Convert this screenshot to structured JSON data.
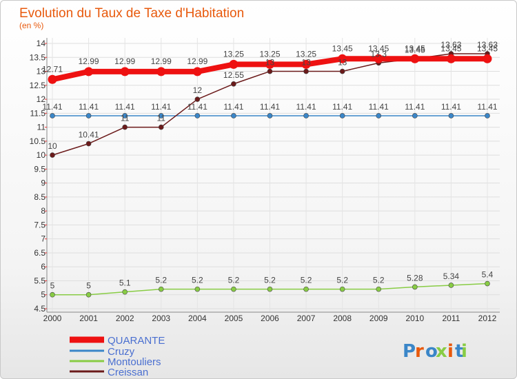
{
  "chart_data": {
    "type": "line",
    "title": "Evolution du Taux de Taxe d'Habitation",
    "subtitle": "(en %)",
    "x": [
      "2000",
      "2001",
      "2002",
      "2003",
      "2004",
      "2005",
      "2006",
      "2007",
      "2008",
      "2009",
      "2010",
      "2011",
      "2012"
    ],
    "ylim": [
      4.5,
      14
    ],
    "yticks": [
      "4.5",
      "5",
      "5.5",
      "6",
      "6.5",
      "7",
      "7.5",
      "8",
      "8.5",
      "9",
      "9.5",
      "10",
      "10.5",
      "11",
      "11.5",
      "12",
      "12.5",
      "13",
      "13.5",
      "14"
    ],
    "grid": true,
    "legend_position": "bottom-left",
    "series": [
      {
        "name": "QUARANTE",
        "color": "#ee1111",
        "values": [
          12.71,
          12.99,
          12.99,
          12.99,
          12.99,
          13.25,
          13.25,
          13.25,
          13.45,
          13.45,
          13.45,
          13.45,
          13.45
        ],
        "labels": [
          "12.71",
          "12.99",
          "12.99",
          "12.99",
          "12.99",
          "13.25",
          "13.25",
          "13.25",
          "13.45",
          "13.45",
          "13.45",
          "13.45",
          "13.45"
        ]
      },
      {
        "name": "Cruzy",
        "color": "#3a86c8",
        "values": [
          11.41,
          11.41,
          11.41,
          11.41,
          11.41,
          11.41,
          11.41,
          11.41,
          11.41,
          11.41,
          11.41,
          11.41,
          11.41
        ],
        "labels": [
          "11.41",
          "11.41",
          "11.41",
          "11.41",
          "11.41",
          "11.41",
          "11.41",
          "11.41",
          "11.41",
          "11.41",
          "11.41",
          "11.41",
          "11.41"
        ]
      },
      {
        "name": "Montouliers",
        "color": "#88cc44",
        "values": [
          5,
          5,
          5.1,
          5.2,
          5.2,
          5.2,
          5.2,
          5.2,
          5.2,
          5.2,
          5.28,
          5.34,
          5.4
        ],
        "labels": [
          "5",
          "5",
          "5.1",
          "5.2",
          "5.2",
          "5.2",
          "5.2",
          "5.2",
          "5.2",
          "5.2",
          "5.28",
          "5.34",
          "5.4"
        ]
      },
      {
        "name": "Creissan",
        "color": "#6b1a1a",
        "values": [
          10,
          10.41,
          11,
          11,
          12,
          12.55,
          13,
          13,
          13,
          13.3,
          13.45,
          13.63,
          13.63
        ],
        "labels": [
          "10",
          "10.41",
          "11",
          "11",
          "12",
          "12.55",
          "13",
          "13",
          "13",
          "13.3",
          "13.45",
          "13.63",
          "13.63"
        ]
      }
    ]
  },
  "logo": {
    "text": "Proxiti",
    "letter_colors": [
      "#3a86c8",
      "#e8590c",
      "#3a86c8",
      "#88cc44",
      "#e8590c",
      "#3a86c8",
      "#88cc44"
    ]
  }
}
